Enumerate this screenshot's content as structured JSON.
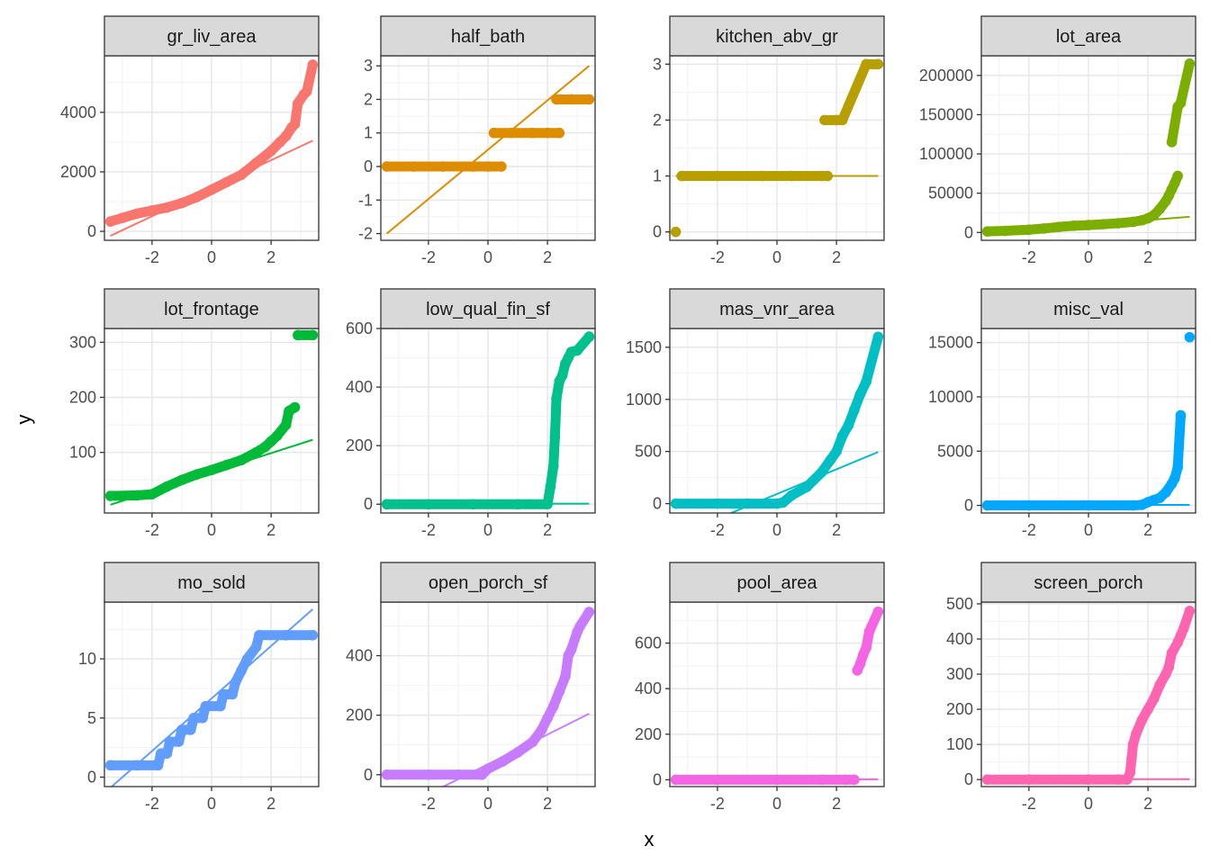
{
  "chart_data": {
    "type": "scatter",
    "subtype": "qq-facets",
    "xlabel": "x",
    "ylabel": "y",
    "xlim": [
      -3.6,
      3.6
    ],
    "x_ticks": [
      -2,
      0,
      2
    ],
    "grid": true,
    "legend": "none",
    "panels": [
      {
        "name": "gr_liv_area",
        "color": "#F8766D",
        "ylim": [
          -300,
          5900
        ],
        "y_ticks": [
          0,
          2000,
          4000
        ],
        "line": {
          "x": [
            -3.4,
            3.4
          ],
          "y": [
            -150,
            3050
          ]
        },
        "points": [
          [
            -3.4,
            330
          ],
          [
            -3.0,
            450
          ],
          [
            -2.5,
            600
          ],
          [
            -2.0,
            700
          ],
          [
            -1.5,
            800
          ],
          [
            -1.0,
            950
          ],
          [
            -0.5,
            1150
          ],
          [
            0,
            1400
          ],
          [
            0.5,
            1650
          ],
          [
            1.0,
            1900
          ],
          [
            1.5,
            2300
          ],
          [
            2.0,
            2700
          ],
          [
            2.3,
            3000
          ],
          [
            2.5,
            3200
          ],
          [
            2.7,
            3500
          ],
          [
            2.8,
            3600
          ],
          [
            2.9,
            4300
          ],
          [
            3.1,
            4600
          ],
          [
            3.2,
            4700
          ],
          [
            3.4,
            5600
          ]
        ]
      },
      {
        "name": "half_bath",
        "color": "#DE8C00",
        "ylim": [
          -2.2,
          3.3
        ],
        "y_ticks": [
          -2,
          -1,
          0,
          1,
          2,
          3
        ],
        "line": {
          "x": [
            -3.4,
            3.4
          ],
          "y": [
            -2.0,
            3.0
          ]
        },
        "points": [
          [
            -3.4,
            0
          ],
          [
            -2.5,
            0
          ],
          [
            -1.5,
            0
          ],
          [
            -0.5,
            0
          ],
          [
            0.0,
            0
          ],
          [
            0.45,
            0
          ],
          [
            0.2,
            1
          ],
          [
            0.8,
            1
          ],
          [
            1.5,
            1
          ],
          [
            2.0,
            1
          ],
          [
            2.4,
            1
          ],
          [
            2.3,
            2
          ],
          [
            2.8,
            2
          ],
          [
            3.4,
            2
          ]
        ]
      },
      {
        "name": "kitchen_abv_gr",
        "color": "#B79F00",
        "ylim": [
          -0.15,
          3.15
        ],
        "y_ticks": [
          0,
          1,
          2,
          3
        ],
        "line": {
          "x": [
            -3.4,
            3.4
          ],
          "y": [
            1.0,
            1.0
          ]
        },
        "points": [
          [
            -3.4,
            0
          ],
          [
            -3.2,
            1
          ],
          [
            -2.0,
            1
          ],
          [
            -0.5,
            1
          ],
          [
            0.5,
            1
          ],
          [
            1.5,
            1
          ],
          [
            1.7,
            1
          ],
          [
            1.6,
            2
          ],
          [
            2.0,
            2
          ],
          [
            2.2,
            2
          ],
          [
            3.0,
            3
          ],
          [
            3.4,
            3
          ]
        ]
      },
      {
        "name": "lot_area",
        "color": "#7CAE00",
        "ylim": [
          -10000,
          225000
        ],
        "y_ticks": [
          0,
          50000,
          100000,
          150000,
          200000
        ],
        "line": {
          "x": [
            -3.4,
            3.4
          ],
          "y": [
            0,
            20000
          ]
        },
        "points": [
          [
            -3.4,
            1300
          ],
          [
            -2.8,
            2000
          ],
          [
            -2.0,
            3500
          ],
          [
            -1.5,
            5000
          ],
          [
            -1.0,
            7000
          ],
          [
            -0.5,
            8500
          ],
          [
            0,
            9400
          ],
          [
            0.5,
            10500
          ],
          [
            1.0,
            11700
          ],
          [
            1.5,
            13500
          ],
          [
            1.8,
            15500
          ],
          [
            2.0,
            18000
          ],
          [
            2.2,
            22000
          ],
          [
            2.4,
            30000
          ],
          [
            2.6,
            40000
          ],
          [
            2.7,
            47000
          ],
          [
            2.8,
            55000
          ],
          [
            2.9,
            63000
          ],
          [
            3.0,
            72000
          ],
          [
            2.8,
            115000
          ],
          [
            3.0,
            160000
          ],
          [
            3.1,
            165000
          ],
          [
            3.4,
            215000
          ]
        ]
      },
      {
        "name": "lot_frontage",
        "color": "#00BA38",
        "ylim": [
          -10,
          325
        ],
        "y_ticks": [
          100,
          200,
          300
        ],
        "line": {
          "x": [
            -3.4,
            3.4
          ],
          "y": [
            5,
            123
          ]
        },
        "points": [
          [
            -3.4,
            21
          ],
          [
            -2.5,
            22
          ],
          [
            -2.0,
            24
          ],
          [
            -1.5,
            38
          ],
          [
            -1.0,
            50
          ],
          [
            -0.5,
            60
          ],
          [
            0,
            68
          ],
          [
            0.5,
            77
          ],
          [
            1.0,
            86
          ],
          [
            1.5,
            100
          ],
          [
            1.8,
            110
          ],
          [
            2.0,
            120
          ],
          [
            2.2,
            130
          ],
          [
            2.5,
            150
          ],
          [
            2.6,
            175
          ],
          [
            2.8,
            182
          ],
          [
            2.9,
            313
          ],
          [
            3.4,
            313
          ]
        ]
      },
      {
        "name": "low_qual_fin_sf",
        "color": "#00C08B",
        "ylim": [
          -30,
          600
        ],
        "y_ticks": [
          0,
          200,
          400,
          600
        ],
        "line": {
          "x": [
            -3.4,
            3.4
          ],
          "y": [
            2,
            2
          ]
        },
        "points": [
          [
            -3.4,
            0
          ],
          [
            -2.0,
            0
          ],
          [
            -0.5,
            0
          ],
          [
            1.0,
            0
          ],
          [
            2.0,
            0
          ],
          [
            2.1,
            60
          ],
          [
            2.2,
            130
          ],
          [
            2.25,
            230
          ],
          [
            2.3,
            360
          ],
          [
            2.4,
            420
          ],
          [
            2.5,
            440
          ],
          [
            2.6,
            480
          ],
          [
            2.7,
            500
          ],
          [
            2.8,
            520
          ],
          [
            3.0,
            525
          ],
          [
            3.4,
            572
          ]
        ]
      },
      {
        "name": "mas_vnr_area",
        "color": "#00BFC4",
        "ylim": [
          -90,
          1680
        ],
        "y_ticks": [
          0,
          500,
          1000,
          1500
        ],
        "line": {
          "x": [
            -3.4,
            3.4
          ],
          "y": [
            -310,
            495
          ]
        },
        "points": [
          [
            -3.4,
            0
          ],
          [
            -2.0,
            0
          ],
          [
            -1.0,
            0
          ],
          [
            0,
            0
          ],
          [
            0.2,
            10
          ],
          [
            0.5,
            80
          ],
          [
            1.0,
            160
          ],
          [
            1.5,
            300
          ],
          [
            1.8,
            420
          ],
          [
            2.0,
            500
          ],
          [
            2.2,
            650
          ],
          [
            2.4,
            750
          ],
          [
            2.6,
            900
          ],
          [
            2.8,
            1050
          ],
          [
            3.0,
            1170
          ],
          [
            3.4,
            1600
          ]
        ]
      },
      {
        "name": "misc_val",
        "color": "#00A9FF",
        "ylim": [
          -700,
          16300
        ],
        "y_ticks": [
          0,
          5000,
          10000,
          15000
        ],
        "line": {
          "x": [
            -3.4,
            3.4
          ],
          "y": [
            50,
            50
          ]
        },
        "points": [
          [
            -3.4,
            0
          ],
          [
            -2.0,
            0
          ],
          [
            0,
            0
          ],
          [
            1.5,
            0
          ],
          [
            1.8,
            50
          ],
          [
            2.0,
            300
          ],
          [
            2.2,
            500
          ],
          [
            2.4,
            700
          ],
          [
            2.6,
            1200
          ],
          [
            2.8,
            2000
          ],
          [
            2.9,
            2500
          ],
          [
            3.0,
            3500
          ],
          [
            3.1,
            8300
          ],
          [
            3.4,
            15500
          ]
        ]
      },
      {
        "name": "mo_sold",
        "color": "#619CFF",
        "ylim": [
          -0.8,
          14.8
        ],
        "y_ticks": [
          0,
          5,
          10
        ],
        "line": {
          "x": [
            -3.4,
            3.4
          ],
          "y": [
            -0.9,
            14.2
          ]
        },
        "points": [
          [
            -3.4,
            1
          ],
          [
            -2.5,
            1
          ],
          [
            -1.8,
            1
          ],
          [
            -1.7,
            2
          ],
          [
            -1.5,
            2
          ],
          [
            -1.4,
            3
          ],
          [
            -1.1,
            3
          ],
          [
            -1.0,
            4
          ],
          [
            -0.7,
            4
          ],
          [
            -0.6,
            5
          ],
          [
            -0.3,
            5
          ],
          [
            -0.2,
            6
          ],
          [
            0.3,
            6
          ],
          [
            0.4,
            7
          ],
          [
            0.7,
            7
          ],
          [
            0.8,
            8
          ],
          [
            1.0,
            9
          ],
          [
            1.2,
            10
          ],
          [
            1.5,
            11
          ],
          [
            1.6,
            12
          ],
          [
            2.5,
            12
          ],
          [
            3.4,
            12
          ]
        ]
      },
      {
        "name": "open_porch_sf",
        "color": "#C77CFF",
        "ylim": [
          -40,
          580
        ],
        "y_ticks": [
          0,
          200,
          400
        ],
        "line": {
          "x": [
            -3.4,
            3.4
          ],
          "y": [
            -135,
            205
          ]
        },
        "points": [
          [
            -3.4,
            0
          ],
          [
            -2.0,
            0
          ],
          [
            -1.0,
            0
          ],
          [
            -0.2,
            0
          ],
          [
            0,
            20
          ],
          [
            0.5,
            45
          ],
          [
            1.0,
            75
          ],
          [
            1.5,
            110
          ],
          [
            1.8,
            150
          ],
          [
            2.0,
            190
          ],
          [
            2.2,
            230
          ],
          [
            2.4,
            280
          ],
          [
            2.6,
            330
          ],
          [
            2.7,
            400
          ],
          [
            2.8,
            420
          ],
          [
            3.0,
            480
          ],
          [
            3.1,
            500
          ],
          [
            3.4,
            547
          ]
        ]
      },
      {
        "name": "pool_area",
        "color": "#F564E3",
        "ylim": [
          -30,
          780
        ],
        "y_ticks": [
          0,
          200,
          400,
          600
        ],
        "line": {
          "x": [
            -3.4,
            3.4
          ],
          "y": [
            2,
            2
          ]
        },
        "points": [
          [
            -3.4,
            0
          ],
          [
            -2.0,
            0
          ],
          [
            0,
            0
          ],
          [
            1.5,
            0
          ],
          [
            2.3,
            0
          ],
          [
            2.6,
            0
          ],
          [
            2.7,
            480
          ],
          [
            2.8,
            510
          ],
          [
            2.9,
            550
          ],
          [
            3.0,
            580
          ],
          [
            3.1,
            650
          ],
          [
            3.4,
            738
          ]
        ]
      },
      {
        "name": "screen_porch",
        "color": "#FF64B0",
        "ylim": [
          -20,
          505
        ],
        "y_ticks": [
          0,
          100,
          200,
          300,
          400,
          500
        ],
        "line": {
          "x": [
            -3.4,
            3.4
          ],
          "y": [
            1,
            1
          ]
        },
        "points": [
          [
            -3.4,
            0
          ],
          [
            -2.0,
            0
          ],
          [
            0,
            0
          ],
          [
            1.0,
            0
          ],
          [
            1.3,
            0
          ],
          [
            1.4,
            20
          ],
          [
            1.45,
            60
          ],
          [
            1.5,
            100
          ],
          [
            1.6,
            130
          ],
          [
            1.8,
            170
          ],
          [
            2.0,
            200
          ],
          [
            2.2,
            230
          ],
          [
            2.4,
            270
          ],
          [
            2.6,
            300
          ],
          [
            2.7,
            320
          ],
          [
            2.8,
            360
          ],
          [
            3.0,
            390
          ],
          [
            3.1,
            410
          ],
          [
            3.2,
            430
          ],
          [
            3.4,
            480
          ]
        ]
      }
    ]
  }
}
